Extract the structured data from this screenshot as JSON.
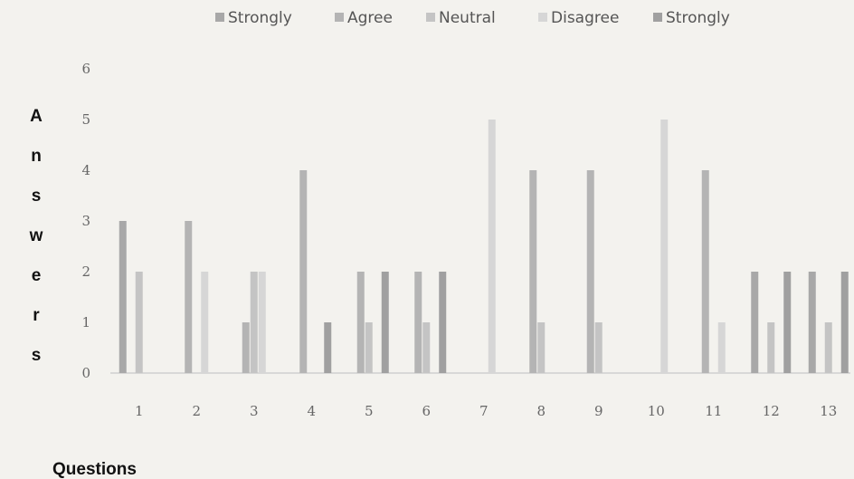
{
  "chart_data": {
    "type": "bar",
    "categories": [
      "1",
      "2",
      "3",
      "4",
      "5",
      "6",
      "7",
      "8",
      "9",
      "10",
      "11",
      "12",
      "13"
    ],
    "series": [
      {
        "name": "Strongly",
        "color": "#a8a8a8",
        "values": [
          3,
          0,
          0,
          0,
          0,
          0,
          0,
          0,
          0,
          0,
          0,
          2,
          2
        ]
      },
      {
        "name": "Agree",
        "color": "#b4b4b4",
        "values": [
          0,
          3,
          1,
          4,
          2,
          2,
          0,
          4,
          4,
          0,
          4,
          0,
          0
        ]
      },
      {
        "name": "Neutral",
        "color": "#c4c4c4",
        "values": [
          2,
          0,
          2,
          0,
          1,
          1,
          0,
          1,
          1,
          0,
          0,
          1,
          1
        ]
      },
      {
        "name": "Disagree",
        "color": "#d6d6d6",
        "values": [
          0,
          2,
          2,
          0,
          0,
          0,
          5,
          0,
          0,
          5,
          1,
          0,
          0
        ]
      },
      {
        "name": "Strongly",
        "color": "#a0a0a0",
        "values": [
          0,
          0,
          0,
          1,
          2,
          2,
          0,
          0,
          0,
          0,
          0,
          2,
          2
        ]
      }
    ],
    "yticks": [
      "0",
      "1",
      "2",
      "3",
      "4",
      "5",
      "6"
    ],
    "ylim": [
      0,
      6
    ],
    "ylabel": "Answers",
    "xlabel": "Questions",
    "legend_position": "top",
    "grid": false
  }
}
